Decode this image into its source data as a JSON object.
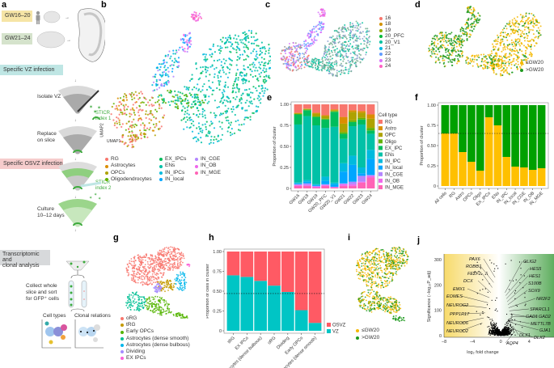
{
  "panels": {
    "a": {
      "label": "a",
      "tag_gw16": "GW16–20",
      "tag_gw21": "GW21–24",
      "tag_vz": "Specific VZ infection",
      "isolate": "Isolate VZ",
      "sticr1": "STICR\nindex 1",
      "replace": "Replace\non slice",
      "tag_osvz": "Specific OSVZ infection",
      "sticr2": "STICR\nindex 2",
      "culture": "Culture\n10–12 days",
      "tag_trans": "Transcriptomic and\nclonal analysis",
      "collect": "Collect whole\nslice and sort\nfor GFP⁺ cells",
      "cell_types": "Cell types",
      "clonal": "Clonal relations",
      "colors": {
        "gw16": "#F6E5A6",
        "gw21": "#D5E3CC",
        "vz": "#BFE6E4",
        "osvz": "#F6CCCC",
        "trans": "#D7D9DB",
        "sticr": "#3DAA3D"
      }
    },
    "b": {
      "label": "b",
      "axis_x": "UMAP1",
      "axis_y": "UMAP2",
      "legend": [
        {
          "name": "RG",
          "color": "#F8766D"
        },
        {
          "name": "Astrocytes",
          "color": "#DB8E00"
        },
        {
          "name": "OPCs",
          "color": "#AEA200"
        },
        {
          "name": "Oligodendrocytes",
          "color": "#64B200"
        },
        {
          "name": "EX_IPCs",
          "color": "#00BD5C"
        },
        {
          "name": "ENs",
          "color": "#00C1A7"
        },
        {
          "name": "IN_IPCs",
          "color": "#00BADE"
        },
        {
          "name": "IN_local",
          "color": "#00A6FF"
        },
        {
          "name": "IN_CGE",
          "color": "#B385FF"
        },
        {
          "name": "IN_OB",
          "color": "#EF67EB"
        },
        {
          "name": "IN_MGE",
          "color": "#FF63B6"
        }
      ]
    },
    "c": {
      "label": "c",
      "legend": [
        {
          "name": "16",
          "color": "#F8766D"
        },
        {
          "name": "18",
          "color": "#D39200"
        },
        {
          "name": "19",
          "color": "#93AA00"
        },
        {
          "name": "20_PFC",
          "color": "#00BA38"
        },
        {
          "name": "20_V1",
          "color": "#00C19F"
        },
        {
          "name": "21",
          "color": "#00B9E3"
        },
        {
          "name": "22",
          "color": "#619CFF"
        },
        {
          "name": "23",
          "color": "#DB72FB"
        },
        {
          "name": "24",
          "color": "#FF61C3"
        }
      ]
    },
    "d": {
      "label": "d",
      "legend": [
        {
          "name": "≤GW20",
          "color": "#F5B800"
        },
        {
          "name": ">GW20",
          "color": "#1E9A1E"
        }
      ]
    },
    "g": {
      "label": "g",
      "legend": [
        {
          "name": "oRG",
          "color": "#F8766D"
        },
        {
          "name": "tRG",
          "color": "#C49A00"
        },
        {
          "name": "Early OPCs",
          "color": "#53B400"
        },
        {
          "name": "Astrocytes (dense smooth)",
          "color": "#00C094"
        },
        {
          "name": "Astrocytes (dense bulbous)",
          "color": "#00B6EB"
        },
        {
          "name": "Dividing",
          "color": "#A58AFF"
        },
        {
          "name": "EX IPCs",
          "color": "#FB61D7"
        }
      ]
    },
    "i": {
      "label": "i",
      "legend": [
        {
          "name": "≤GW20",
          "color": "#F5B800"
        },
        {
          "name": ">GW20",
          "color": "#1E9A1E"
        }
      ]
    },
    "e": {
      "label": "e"
    },
    "f": {
      "label": "f"
    },
    "h": {
      "label": "h"
    },
    "j": {
      "label": "j"
    }
  },
  "chart_data": [
    {
      "panel": "e",
      "type": "bar",
      "stacked": true,
      "ylabel": "Proportion of cluster",
      "ylim": [
        0,
        1
      ],
      "yticks": [
        "0",
        "0.25",
        "0.50",
        "0.75",
        "1.00"
      ],
      "categories": [
        "GW16",
        "GW18",
        "GW19",
        "GW20_PFC",
        "GW20_V1",
        "GW21",
        "GW22",
        "GW23",
        "GW24"
      ],
      "legend_title": "Cell type",
      "legend_position": "right",
      "series": [
        {
          "name": "RG",
          "color": "#F8766D",
          "values": [
            0.1,
            0.05,
            0.1,
            0.13,
            0.06,
            0.15,
            0.07,
            0.08,
            0.12
          ]
        },
        {
          "name": "Astro",
          "color": "#DB8E00",
          "values": [
            0.005,
            0.005,
            0.01,
            0.01,
            0.01,
            0.08,
            0.02,
            0.02,
            0.05
          ]
        },
        {
          "name": "OPC",
          "color": "#AEA200",
          "values": [
            0.01,
            0.005,
            0.03,
            0.03,
            0.01,
            0.1,
            0.1,
            0.06,
            0.11
          ]
        },
        {
          "name": "Oligo",
          "color": "#64B200",
          "values": [
            0.005,
            0.01,
            0.01,
            0.01,
            0.01,
            0.02,
            0.02,
            0.02,
            0.03
          ]
        },
        {
          "name": "EX_IPC",
          "color": "#00BD5C",
          "values": [
            0.12,
            0.07,
            0.1,
            0.1,
            0.18,
            0.06,
            0.05,
            0.06,
            0.04
          ]
        },
        {
          "name": "ENs",
          "color": "#00C1A7",
          "values": [
            0.69,
            0.76,
            0.7,
            0.58,
            0.67,
            0.29,
            0.35,
            0.51,
            0.19
          ]
        },
        {
          "name": "IN_IPC",
          "color": "#00BADE",
          "values": [
            0.01,
            0.02,
            0.01,
            0.05,
            0.02,
            0.1,
            0.11,
            0.07,
            0.11
          ]
        },
        {
          "name": "IN_local",
          "color": "#00A6FF",
          "values": [
            0.01,
            0.02,
            0.01,
            0.04,
            0.03,
            0.14,
            0.2,
            0.03,
            0.19
          ]
        },
        {
          "name": "IN_CGE",
          "color": "#B385FF",
          "values": [
            0.01,
            0.02,
            0.01,
            0.01,
            0.005,
            0.01,
            0.03,
            0.07,
            0.01
          ]
        },
        {
          "name": "IN_OB",
          "color": "#EF67EB",
          "values": [
            0.01,
            0.01,
            0.01,
            0.01,
            0.005,
            0.02,
            0.02,
            0.01,
            0.02
          ]
        },
        {
          "name": "IN_MGE",
          "color": "#FF63B6",
          "values": [
            0.03,
            0.03,
            0.01,
            0.03,
            0.01,
            0.03,
            0.03,
            0.07,
            0.13
          ]
        }
      ]
    },
    {
      "panel": "f",
      "type": "bar",
      "stacked": true,
      "ylabel": "Proportion of cluster",
      "ylim": [
        0,
        1
      ],
      "yticks": [
        "0",
        "0.25",
        "0.50",
        "0.75",
        "1.00"
      ],
      "categories": [
        "All cells",
        "RG",
        "Astro",
        "OPCs",
        "Oligo",
        "EX_IPCs",
        "ENs",
        "IN_IPC",
        "IN_local",
        "IN_CGE",
        "IN_OB",
        "IN_MGE"
      ],
      "reference_line": 0.65,
      "series": [
        {
          "name": "≤GW20",
          "color": "#FFC000",
          "values": [
            0.65,
            0.65,
            0.42,
            0.3,
            0.19,
            0.85,
            0.75,
            0.36,
            0.24,
            0.23,
            0.2,
            0.22
          ]
        },
        {
          "name": ">GW20",
          "color": "#00A000",
          "values": [
            0.35,
            0.35,
            0.58,
            0.7,
            0.81,
            0.15,
            0.25,
            0.64,
            0.76,
            0.77,
            0.8,
            0.78
          ]
        }
      ]
    },
    {
      "panel": "h",
      "type": "bar",
      "stacked": true,
      "ylabel": "Proportion of cells in cluster",
      "ylim": [
        0,
        1
      ],
      "yticks": [
        "0",
        "0.25",
        "0.50",
        "0.75",
        "1.00"
      ],
      "categories": [
        "tRG",
        "EX IPCs",
        "Astrocytes\n(dense bulbous)",
        "oRG",
        "Dividing",
        "Early OPCs",
        "Astrocytes\n(dense smooth)"
      ],
      "reference_line": 0.47,
      "legend_position": "bottom-right",
      "series": [
        {
          "name": "VZ",
          "color": "#00C5C5",
          "values": [
            0.7,
            0.68,
            0.63,
            0.57,
            0.49,
            0.26,
            0.1
          ]
        },
        {
          "name": "OSVZ",
          "color": "#FF5A64",
          "values": [
            0.3,
            0.32,
            0.37,
            0.43,
            0.51,
            0.74,
            0.9
          ]
        }
      ]
    },
    {
      "panel": "j",
      "type": "scatter",
      "xlabel": "log₂ fold change",
      "ylabel": "Significance (−log₁₀P_adj)",
      "xlim": [
        -8,
        7.5
      ],
      "ylim": [
        0,
        310
      ],
      "xticks": [
        "−8",
        "−4",
        "0",
        "4"
      ],
      "yticks": [
        "0",
        "100",
        "200",
        "300"
      ],
      "labels_left": [
        "PAX6",
        "ROBO1",
        "FEZF2",
        "DCX",
        "EMX1",
        "EOMES",
        "NEUROG2",
        "PPP1R17",
        "NEUROD6",
        "NEUROD2"
      ],
      "labels_right": [
        "OLIG2",
        "HES5",
        "HES1",
        "S100B",
        "SOX9",
        "NR2F2",
        "SPARCL1",
        "GAD1",
        "GAD2",
        "METTL7B",
        "GJA1",
        "DLX1",
        "DLX2",
        "AQP4"
      ],
      "left_color": "#F7DA6A",
      "right_color": "#5FAE5F"
    }
  ]
}
